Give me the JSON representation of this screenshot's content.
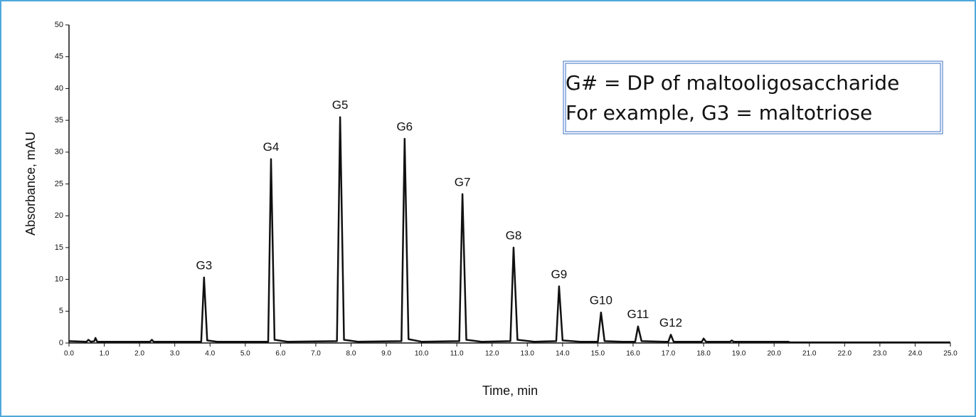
{
  "chart_data": {
    "type": "line",
    "ylabel": "Absorbance, mAU",
    "xlabel": "Time, min",
    "text_box": [
      "G# = DP of maltooligosaccharide",
      "For example, G3 = maltotriose"
    ],
    "xlim": [
      0,
      25
    ],
    "ylim": [
      0,
      50
    ],
    "xticks": [
      {
        "value": 0,
        "label": "0.0"
      },
      {
        "value": 1,
        "label": "1.0"
      },
      {
        "value": 2,
        "label": "2.0"
      },
      {
        "value": 3,
        "label": "3.0"
      },
      {
        "value": 4,
        "label": "4.0"
      },
      {
        "value": 5,
        "label": "5.0"
      },
      {
        "value": 6,
        "label": "6.0"
      },
      {
        "value": 7,
        "label": "7.0"
      },
      {
        "value": 8,
        "label": "8.0"
      },
      {
        "value": 9,
        "label": "9.0"
      },
      {
        "value": 10,
        "label": "10.0"
      },
      {
        "value": 11,
        "label": "11.0"
      },
      {
        "value": 12,
        "label": "12.0"
      },
      {
        "value": 13,
        "label": "13.0"
      },
      {
        "value": 14,
        "label": "14.0"
      },
      {
        "value": 15,
        "label": "15.0"
      },
      {
        "value": 16,
        "label": "16.0"
      },
      {
        "value": 17,
        "label": "17.0"
      },
      {
        "value": 18,
        "label": "18.0"
      },
      {
        "value": 19,
        "label": "19.0"
      },
      {
        "value": 20,
        "label": "20.0"
      },
      {
        "value": 21,
        "label": "21.0"
      },
      {
        "value": 22,
        "label": "22.0"
      },
      {
        "value": 23,
        "label": "23.0"
      },
      {
        "value": 24,
        "label": "24.0"
      },
      {
        "value": 25,
        "label": "25.0"
      }
    ],
    "yticks": [
      0,
      5,
      10,
      15,
      20,
      25,
      30,
      35,
      40,
      45,
      50
    ],
    "series": [
      {
        "color": "#111111",
        "x": [
          0,
          0.5,
          0.55,
          0.62,
          0.72,
          0.75,
          0.8,
          2.3,
          2.35,
          2.4,
          3.75,
          3.83,
          3.92,
          4.2,
          5.65,
          5.73,
          5.83,
          6.2,
          7.6,
          7.69,
          7.8,
          8.2,
          9.43,
          9.52,
          9.63,
          10.0,
          11.07,
          11.16,
          11.27,
          11.7,
          12.52,
          12.61,
          12.72,
          13.2,
          13.82,
          13.9,
          14.0,
          14.5,
          15.0,
          15.09,
          15.19,
          15.7,
          16.06,
          16.14,
          16.24,
          16.9,
          17.0,
          17.07,
          17.15,
          17.95,
          18.0,
          18.07,
          18.75,
          18.8,
          18.85,
          20.4,
          20.45,
          25
        ],
        "values": [
          0.3,
          0.2,
          0.5,
          0.2,
          0.3,
          0.8,
          0.2,
          0.2,
          0.5,
          0.2,
          0.2,
          10.3,
          0.4,
          0.2,
          0.2,
          28.9,
          0.5,
          0.2,
          0.3,
          35.5,
          0.5,
          0.2,
          0.3,
          32.1,
          0.6,
          0.2,
          0.3,
          23.4,
          0.5,
          0.2,
          0.3,
          15.0,
          0.5,
          0.2,
          0.3,
          8.9,
          0.4,
          0.2,
          0.2,
          4.8,
          0.3,
          0.2,
          0.2,
          2.6,
          0.3,
          0.2,
          0.2,
          1.3,
          0.2,
          0.2,
          0.7,
          0.2,
          0.2,
          0.4,
          0.2,
          0.2,
          0.1,
          0.1
        ],
        "labels": [
          null,
          null,
          null,
          null,
          null,
          null,
          null,
          null,
          null,
          null,
          null,
          "G3",
          null,
          null,
          null,
          "G4",
          null,
          null,
          null,
          "G5",
          null,
          null,
          null,
          "G6",
          null,
          null,
          null,
          "G7",
          null,
          null,
          null,
          "G8",
          null,
          null,
          null,
          "G9",
          null,
          null,
          null,
          "G10",
          null,
          null,
          null,
          "G11",
          null,
          null,
          null,
          "G12",
          null,
          null,
          null,
          null,
          null,
          null,
          null,
          null,
          null,
          null
        ]
      }
    ]
  }
}
